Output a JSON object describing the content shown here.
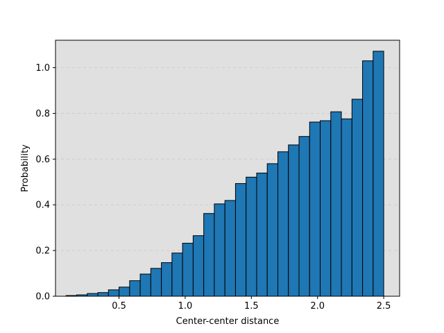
{
  "chart_data": {
    "type": "bar",
    "title": "",
    "xlabel": "Center-center distance",
    "ylabel": "Probability",
    "xlim": [
      0.02,
      2.62
    ],
    "ylim": [
      0,
      1.12
    ],
    "x_ticks": [
      0.5,
      1.0,
      1.5,
      2.0,
      2.5
    ],
    "x_tick_labels": [
      "0.5",
      "1.0",
      "1.5",
      "2.0",
      "2.5"
    ],
    "y_ticks": [
      0.0,
      0.2,
      0.4,
      0.6,
      0.8,
      1.0
    ],
    "y_tick_labels": [
      "0.0",
      "0.2",
      "0.4",
      "0.6",
      "0.8",
      "1.0"
    ],
    "grid": "y-dashed",
    "background_color": "#e0e0e0",
    "bar_color": "#1f77b4",
    "edge_color": "#000000",
    "bin_edges": [
      0.1,
      0.18,
      0.26,
      0.34,
      0.42,
      0.5,
      0.58,
      0.66,
      0.74,
      0.82,
      0.9,
      0.98,
      1.06,
      1.14,
      1.22,
      1.3,
      1.38,
      1.46,
      1.54,
      1.62,
      1.7,
      1.78,
      1.86,
      1.94,
      2.02,
      2.1,
      2.18,
      2.26,
      2.34,
      2.42,
      2.5
    ],
    "values": [
      0.003,
      0.006,
      0.012,
      0.016,
      0.028,
      0.04,
      0.068,
      0.097,
      0.122,
      0.147,
      0.189,
      0.232,
      0.265,
      0.362,
      0.404,
      0.419,
      0.493,
      0.521,
      0.539,
      0.58,
      0.632,
      0.662,
      0.699,
      0.762,
      0.768,
      0.807,
      0.776,
      0.862,
      1.03,
      1.072
    ]
  }
}
